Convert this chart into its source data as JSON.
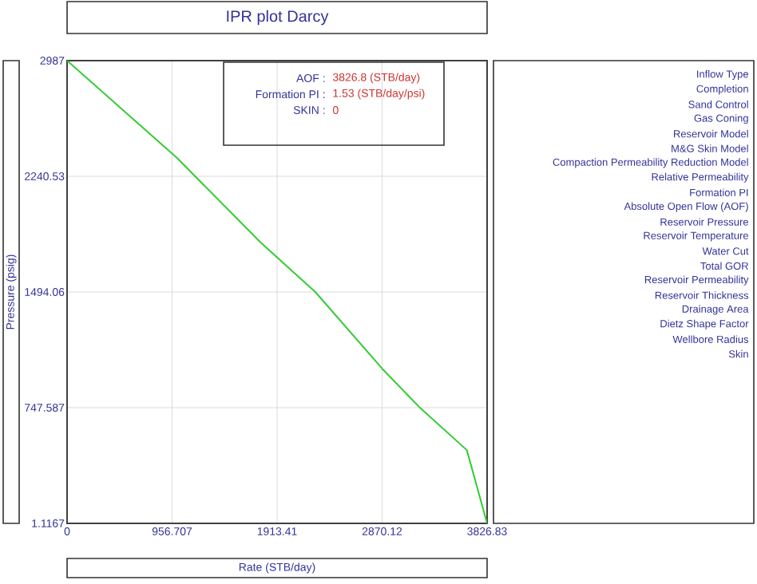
{
  "chart_data": {
    "type": "line",
    "title": "IPR plot  Darcy",
    "xlabel": "Rate  (STB/day)",
    "ylabel": "Pressure  (psig)",
    "x": [
      0,
      1000,
      1764,
      2262,
      2870,
      3215,
      3642,
      3826.83
    ],
    "series": [
      {
        "color": "#33cc33",
        "values": [
          2987,
          2360,
          1813,
          1494,
          1000,
          747,
          474,
          1.1167
        ]
      }
    ],
    "xlim": [
      0,
      3826.83
    ],
    "ylim": [
      1.1167,
      2987
    ],
    "xticks": [
      0,
      956.707,
      1913.41,
      2870.12,
      3826.83
    ],
    "yticks": [
      1.1167,
      747.587,
      1494.06,
      2240.53,
      2987
    ],
    "grid": true,
    "marker": "none",
    "line_style": "solid",
    "annotations": [
      "AOF :",
      "3826.8 (STB/day)",
      "Formation PI :",
      "1.53 (STB/day/psi)",
      "SKIN :",
      "0",
      "Inflow Type",
      "Completion",
      "Sand Control",
      "Gas Coning",
      "Reservoir Model",
      "M&G Skin Model",
      "Compaction Permeability Reduction Model",
      "Relative Permeability",
      "Formation PI",
      "Absolute Open Flow (AOF)",
      "Reservoir Pressure",
      "Reservoir Temperature",
      "Water Cut",
      "Total GOR",
      "Reservoir Permeability",
      "Reservoir Thickness",
      "Drainage Area",
      "Dietz Shape Factor",
      "Wellbore Radius",
      "Skin"
    ]
  }
}
